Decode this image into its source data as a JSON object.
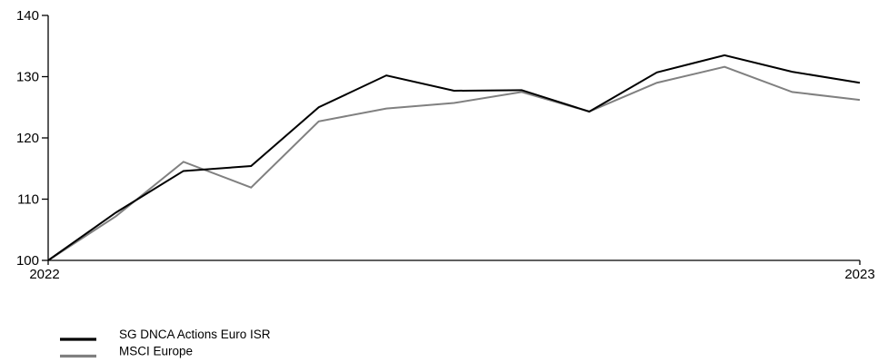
{
  "chart_data": {
    "type": "line",
    "x_range": [
      "2022",
      "2023"
    ],
    "x_tick_labels": [
      "2022",
      "2023"
    ],
    "y_tick_labels": [
      "100",
      "110",
      "120",
      "130",
      "140"
    ],
    "y_ticks": [
      100,
      110,
      120,
      130,
      140
    ],
    "ylim": [
      100,
      140
    ],
    "grid": false,
    "legend_position": "bottom-left",
    "series": [
      {
        "name": "SG DNCA Actions Euro ISR",
        "color": "#000000",
        "values": [
          100,
          107.8,
          114.6,
          115.4,
          125.0,
          130.2,
          127.7,
          127.8,
          124.3,
          130.7,
          133.5,
          130.8,
          129.0
        ]
      },
      {
        "name": "MSCI Europe",
        "color": "#808080",
        "values": [
          100,
          107.2,
          116.1,
          111.9,
          122.7,
          124.8,
          125.7,
          127.5,
          124.3,
          129.0,
          131.6,
          127.5,
          126.2
        ]
      }
    ]
  }
}
